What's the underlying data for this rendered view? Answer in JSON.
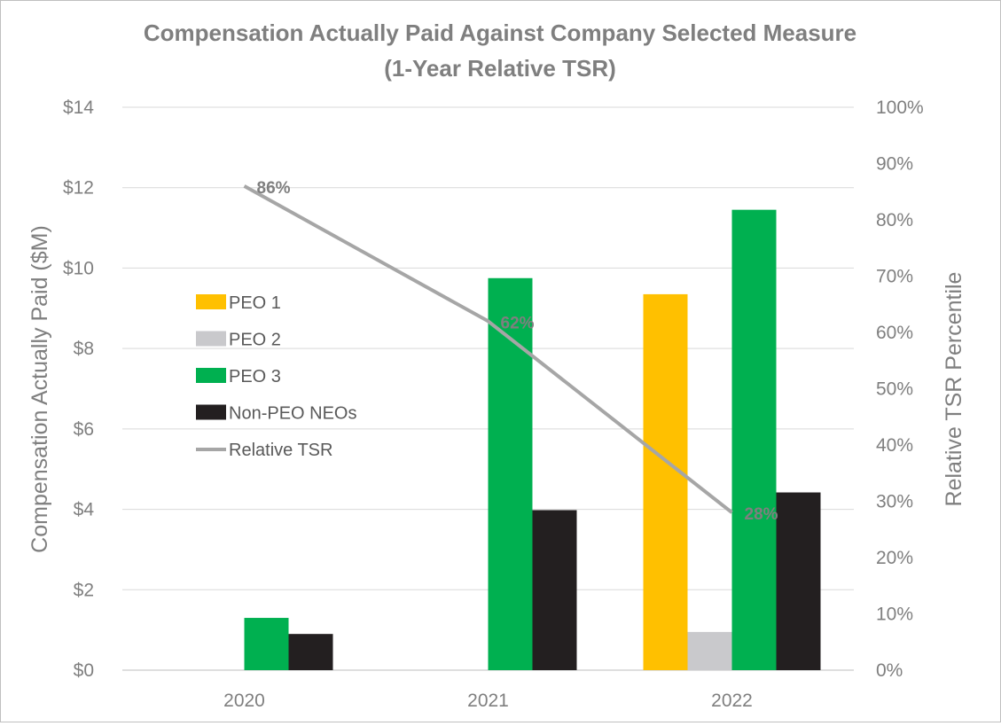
{
  "chart_data": {
    "type": "bar",
    "title": "Compensation Actually Paid Against Company Selected Measure",
    "subtitle": "(1-Year Relative TSR)",
    "categories": [
      "2020",
      "2021",
      "2022"
    ],
    "ylabel": "Compensation Actually Paid ($M)",
    "y2label": "Relative TSR Percentile",
    "ylim": [
      0,
      14
    ],
    "y_ticks": [
      "$0",
      "$2",
      "$4",
      "$6",
      "$8",
      "$10",
      "$12",
      "$14"
    ],
    "y2lim": [
      0,
      100
    ],
    "y2_ticks": [
      "0%",
      "10%",
      "20%",
      "30%",
      "40%",
      "50%",
      "60%",
      "70%",
      "80%",
      "90%",
      "100%"
    ],
    "grid": true,
    "legend_position": "left",
    "series": [
      {
        "name": "PEO 1",
        "kind": "bar",
        "color": "#ffc000",
        "values": [
          null,
          null,
          9.35
        ]
      },
      {
        "name": "PEO 2",
        "kind": "bar",
        "color": "#c9c9cc",
        "values": [
          null,
          null,
          0.95
        ]
      },
      {
        "name": "PEO 3",
        "kind": "bar",
        "color": "#00b050",
        "values": [
          1.3,
          9.75,
          11.45
        ]
      },
      {
        "name": "Non-PEO NEOs",
        "kind": "bar",
        "color": "#231f20",
        "values": [
          0.9,
          3.98,
          4.42
        ]
      },
      {
        "name": "Relative TSR",
        "kind": "line",
        "axis": "right",
        "color": "#a6a6a6",
        "values": [
          86,
          62,
          28
        ],
        "labels": [
          "86%",
          "62%",
          "28%"
        ]
      }
    ]
  }
}
